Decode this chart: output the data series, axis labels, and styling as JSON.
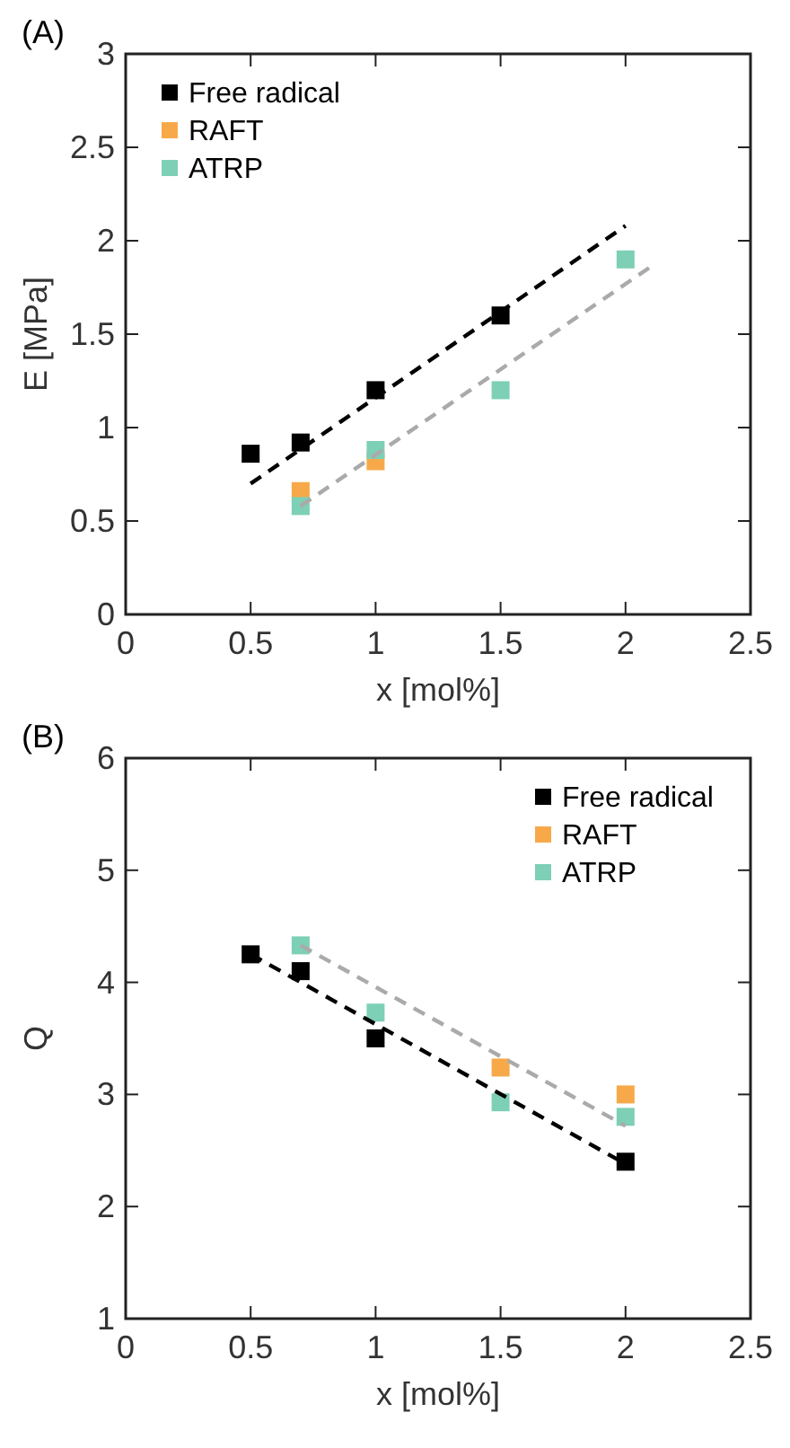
{
  "chart_data": [
    {
      "type": "scatter",
      "title": "(A)",
      "xlabel": "x [mol%]",
      "ylabel": "E [MPa]",
      "xlim": [
        0,
        2.5
      ],
      "xticks": [
        0,
        0.5,
        1,
        1.5,
        2,
        2.5
      ],
      "ylim": [
        0,
        3
      ],
      "yticks": [
        0,
        0.5,
        1,
        1.5,
        2,
        2.5,
        3
      ],
      "legend": "top left",
      "marker": "square",
      "grid": false,
      "series": [
        {
          "name": "Free radical",
          "color": "#000000",
          "x": [
            0.5,
            0.7,
            1,
            1.5
          ],
          "values": [
            0.86,
            0.92,
            1.2,
            1.6
          ]
        },
        {
          "name": "RAFT",
          "color": "#f7a94a",
          "x": [
            0.7,
            1
          ],
          "values": [
            0.66,
            0.82
          ]
        },
        {
          "name": "ATRP",
          "color": "#7dcfb6",
          "x": [
            0.7,
            1,
            1.5,
            2
          ],
          "values": [
            0.58,
            0.88,
            1.2,
            1.9
          ]
        },
        {
          "type": "line",
          "color": "#000000",
          "marker": "none",
          "line_style": "dashed",
          "x": [
            0.5,
            2
          ],
          "values": [
            0.7,
            2.08
          ]
        },
        {
          "type": "line",
          "color": "#aaaaaa",
          "marker": "none",
          "line_style": "dashed",
          "x": [
            0.7,
            2.1
          ],
          "values": [
            0.58,
            1.86
          ]
        }
      ]
    },
    {
      "type": "scatter",
      "title": "(B)",
      "xlabel": "x [mol%]",
      "ylabel": "Q",
      "xlim": [
        0,
        2.5
      ],
      "xticks": [
        0,
        0.5,
        1,
        1.5,
        2,
        2.5
      ],
      "ylim": [
        1,
        6
      ],
      "yticks": [
        1,
        2,
        3,
        4,
        5,
        6
      ],
      "legend": "top right",
      "marker": "square",
      "grid": false,
      "series": [
        {
          "name": "Free radical",
          "color": "#000000",
          "x": [
            0.5,
            0.7,
            1,
            2
          ],
          "values": [
            4.25,
            4.1,
            3.5,
            2.4
          ]
        },
        {
          "name": "RAFT",
          "color": "#f7a94a",
          "x": [
            1.5,
            2
          ],
          "values": [
            3.24,
            3.0
          ]
        },
        {
          "name": "ATRP",
          "color": "#7dcfb6",
          "x": [
            0.7,
            1,
            1.5,
            2
          ],
          "values": [
            4.33,
            3.73,
            2.93,
            2.8
          ]
        },
        {
          "type": "line",
          "color": "#000000",
          "marker": "none",
          "line_style": "dashed",
          "x": [
            0.5,
            2
          ],
          "values": [
            4.25,
            2.38
          ]
        },
        {
          "type": "line",
          "color": "#aaaaaa",
          "marker": "none",
          "line_style": "dashed",
          "x": [
            0.7,
            2
          ],
          "values": [
            4.33,
            2.72
          ]
        }
      ]
    }
  ]
}
